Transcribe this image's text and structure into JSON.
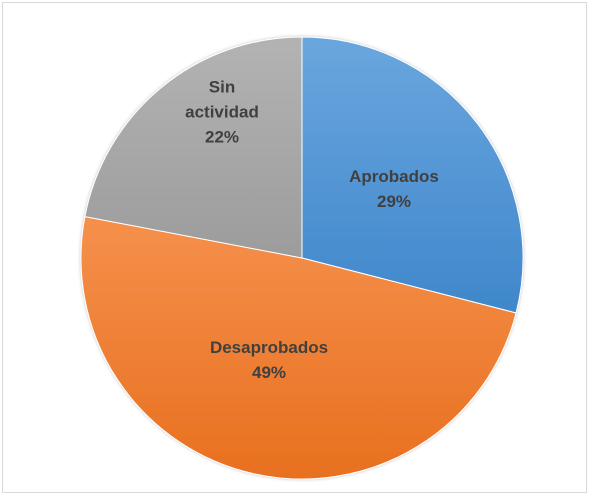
{
  "chart_data": {
    "type": "pie",
    "title": "",
    "slices": [
      {
        "label_lines": [
          "Aprobados"
        ],
        "percent_label": "29%",
        "value": 29,
        "color": "#5b9bd5"
      },
      {
        "label_lines": [
          "Desaprobados"
        ],
        "percent_label": "49%",
        "value": 49,
        "color": "#ed7d31"
      },
      {
        "label_lines": [
          "Sin",
          "actividad"
        ],
        "percent_label": "22%",
        "value": 22,
        "color": "#a5a5a5"
      }
    ],
    "start_angle_deg": 0,
    "direction": "clockwise",
    "legend": "none",
    "data_labels": "inside"
  }
}
